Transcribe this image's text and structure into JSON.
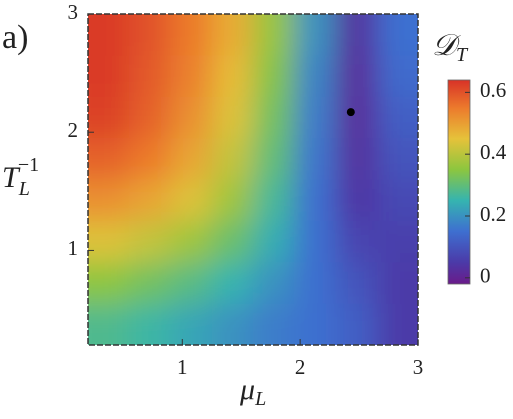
{
  "chart_data": {
    "type": "heatmap",
    "panel_label": "a)",
    "x_label": {
      "base": "μ",
      "sub": "L"
    },
    "y_label": {
      "base": "T",
      "sub": "L",
      "sup": "−1"
    },
    "colorbar_label": {
      "base": "𝒟",
      "sub": "T"
    },
    "x": [
      0.375,
      0.725,
      1.075,
      1.425,
      1.775,
      2.125,
      2.475,
      2.825
    ],
    "y": [
      2.825,
      2.475,
      2.125,
      1.775,
      1.425,
      1.075,
      0.725,
      0.375
    ],
    "z": [
      [
        0.63,
        0.6,
        0.55,
        0.48,
        0.36,
        0.2,
        0.03,
        0.15
      ],
      [
        0.63,
        0.59,
        0.54,
        0.46,
        0.34,
        0.18,
        0.02,
        0.14
      ],
      [
        0.62,
        0.58,
        0.52,
        0.44,
        0.32,
        0.17,
        0.02,
        0.12
      ],
      [
        0.58,
        0.55,
        0.49,
        0.41,
        0.3,
        0.16,
        0.03,
        0.1
      ],
      [
        0.52,
        0.49,
        0.44,
        0.37,
        0.27,
        0.15,
        0.04,
        0.08
      ],
      [
        0.44,
        0.41,
        0.37,
        0.31,
        0.24,
        0.15,
        0.07,
        0.06
      ],
      [
        0.35,
        0.32,
        0.29,
        0.25,
        0.2,
        0.15,
        0.1,
        0.05
      ],
      [
        0.28,
        0.26,
        0.23,
        0.2,
        0.17,
        0.15,
        0.12,
        0.05
      ]
    ],
    "xlim": [
      0.2,
      3
    ],
    "ylim": [
      0.2,
      3
    ],
    "xticks": [
      1,
      2,
      3
    ],
    "yticks": [
      1,
      2,
      3
    ],
    "zlim": [
      -0.02,
      0.64
    ],
    "zticks": [
      0,
      0.2,
      0.4,
      0.6
    ],
    "colormap": [
      [
        -0.02,
        "#6a1b8a"
      ],
      [
        0.05,
        "#4b3aa8"
      ],
      [
        0.15,
        "#3e6fd0"
      ],
      [
        0.25,
        "#35b4b0"
      ],
      [
        0.35,
        "#8cc63f"
      ],
      [
        0.45,
        "#e6c23a"
      ],
      [
        0.55,
        "#ec7a2c"
      ],
      [
        0.64,
        "#d83227"
      ]
    ],
    "point": {
      "x": 2.43,
      "y": 2.17,
      "color": "#000000"
    }
  }
}
